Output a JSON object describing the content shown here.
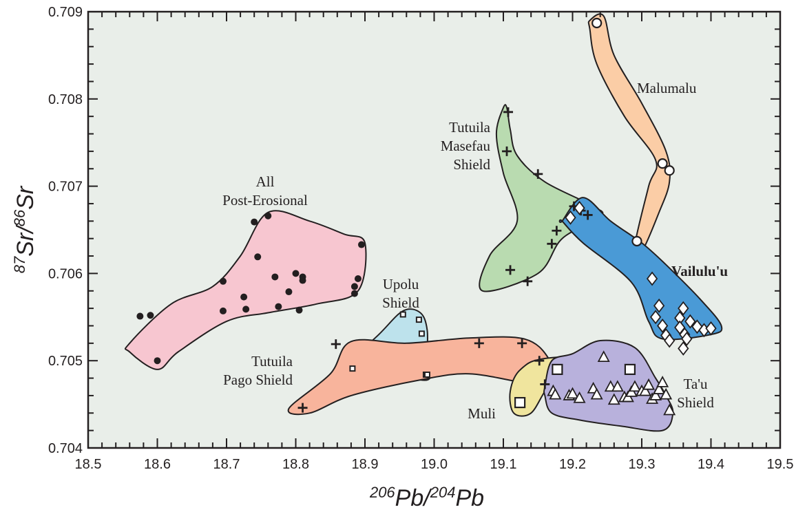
{
  "chart_data": {
    "type": "scatter",
    "title": "",
    "xlabel": {
      "a": "206",
      "b": "Pb/",
      "c": "204",
      "d": "Pb"
    },
    "ylabel": {
      "a": "87",
      "b": "Sr/",
      "c": "86",
      "d": "Sr"
    },
    "xlim": [
      18.5,
      19.5
    ],
    "ylim": [
      0.704,
      0.709
    ],
    "xticks": [
      "18.5",
      "18.6",
      "18.7",
      "18.8",
      "18.9",
      "19.0",
      "19.1",
      "19.2",
      "19.3",
      "19.4",
      "19.5"
    ],
    "yticks": [
      "0.704",
      "0.705",
      "0.706",
      "0.707",
      "0.708",
      "0.709"
    ],
    "grid": false,
    "background": "#e9eee9",
    "series": [
      {
        "name": "All Post-Erosional",
        "label_lines": [
          "All",
          "Post-Erosional"
        ],
        "marker": "dot",
        "fill": "#f7c6d0",
        "outline": [
          [
            18.56,
            0.7052
          ],
          [
            18.62,
            0.70565
          ],
          [
            18.68,
            0.70585
          ],
          [
            18.72,
            0.7062
          ],
          [
            18.76,
            0.7067
          ],
          [
            18.82,
            0.7066
          ],
          [
            18.87,
            0.70645
          ],
          [
            18.9,
            0.70635
          ],
          [
            18.89,
            0.7058
          ],
          [
            18.83,
            0.70565
          ],
          [
            18.76,
            0.70555
          ],
          [
            18.7,
            0.70545
          ],
          [
            18.63,
            0.7051
          ],
          [
            18.6,
            0.7049
          ],
          [
            18.56,
            0.7051
          ]
        ],
        "x": [
          18.575,
          18.59,
          18.6,
          18.695,
          18.695,
          18.725,
          18.728,
          18.74,
          18.745,
          18.76,
          18.77,
          18.775,
          18.79,
          18.8,
          18.805,
          18.81,
          18.81,
          18.885,
          18.885,
          18.89,
          18.895
        ],
        "y": [
          0.70551,
          0.70552,
          0.705,
          0.70591,
          0.70557,
          0.70573,
          0.70559,
          0.70659,
          0.70619,
          0.70666,
          0.70596,
          0.70562,
          0.70579,
          0.706,
          0.70558,
          0.70592,
          0.70596,
          0.70585,
          0.70577,
          0.70594,
          0.70633
        ]
      },
      {
        "name": "Upolu Shield",
        "label_lines": [
          "Upolu",
          "Shield"
        ],
        "marker": "small-square",
        "fill": "#bde2ec",
        "outline": [
          [
            18.87,
            0.70492
          ],
          [
            18.92,
            0.7053
          ],
          [
            18.955,
            0.70557
          ],
          [
            18.98,
            0.70555
          ],
          [
            18.99,
            0.70535
          ],
          [
            18.99,
            0.705
          ],
          [
            18.995,
            0.70482
          ],
          [
            18.98,
            0.70478
          ],
          [
            18.93,
            0.7049
          ],
          [
            18.88,
            0.70485
          ]
        ],
        "x": [
          18.882,
          18.955,
          18.978,
          18.982,
          18.988,
          18.99
        ],
        "y": [
          0.70491,
          0.70553,
          0.70547,
          0.70531,
          0.70484,
          0.70484
        ]
      },
      {
        "name": "Tutuila Pago Shield",
        "label_lines": [
          "Tutuila",
          "Pago Shield"
        ],
        "marker": "plus",
        "fill": "#f8b49c",
        "outline": [
          [
            18.79,
            0.70445
          ],
          [
            18.85,
            0.70485
          ],
          [
            18.88,
            0.70522
          ],
          [
            18.96,
            0.7052
          ],
          [
            19.05,
            0.70526
          ],
          [
            19.13,
            0.70525
          ],
          [
            19.165,
            0.70503
          ],
          [
            19.17,
            0.70475
          ],
          [
            19.13,
            0.70475
          ],
          [
            19.05,
            0.70485
          ],
          [
            18.98,
            0.70478
          ],
          [
            18.88,
            0.7046
          ],
          [
            18.82,
            0.7044
          ]
        ],
        "x": [
          18.81,
          18.858,
          19.065,
          19.127,
          19.152,
          19.16
        ],
        "y": [
          0.70446,
          0.70519,
          0.7052,
          0.7052,
          0.705,
          0.70473
        ]
      },
      {
        "name": "Tutuila Masefau Shield",
        "label_lines": [
          "Tutuila",
          "Masefau",
          "Shield"
        ],
        "marker": "plus",
        "fill": "#b9dbb0",
        "outline": [
          [
            19.105,
            0.7079
          ],
          [
            19.11,
            0.70765
          ],
          [
            19.12,
            0.70735
          ],
          [
            19.16,
            0.70705
          ],
          [
            19.23,
            0.70677
          ],
          [
            19.24,
            0.70665
          ],
          [
            19.185,
            0.7064
          ],
          [
            19.15,
            0.706
          ],
          [
            19.07,
            0.7058
          ],
          [
            19.08,
            0.7062
          ],
          [
            19.12,
            0.7066
          ],
          [
            19.1,
            0.70715
          ],
          [
            19.09,
            0.7076
          ],
          [
            19.1,
            0.7079
          ]
        ],
        "x": [
          19.107,
          19.105,
          19.11,
          19.135,
          19.15,
          19.17,
          19.177,
          19.202,
          19.212,
          19.222
        ],
        "y": [
          0.70785,
          0.7074,
          0.70604,
          0.70591,
          0.70714,
          0.70634,
          0.70649,
          0.70677,
          0.70672,
          0.70667
        ]
      },
      {
        "name": "Malumalu",
        "label_lines": [
          "Malumalu"
        ],
        "marker": "circle",
        "fill": "#fbcda6",
        "outline": [
          [
            19.225,
            0.7089
          ],
          [
            19.245,
            0.70895
          ],
          [
            19.26,
            0.7085
          ],
          [
            19.3,
            0.70795
          ],
          [
            19.335,
            0.7074
          ],
          [
            19.34,
            0.70705
          ],
          [
            19.325,
            0.7067
          ],
          [
            19.3,
            0.70625
          ],
          [
            19.29,
            0.70632
          ],
          [
            19.31,
            0.707
          ],
          [
            19.32,
            0.7073
          ],
          [
            19.275,
            0.7078
          ],
          [
            19.235,
            0.7084
          ],
          [
            19.225,
            0.7088
          ]
        ],
        "x": [
          19.235,
          19.293,
          19.33,
          19.34
        ],
        "y": [
          0.70887,
          0.70637,
          0.70726,
          0.70718
        ]
      },
      {
        "name": "Vailulu'u",
        "label_lines": [
          "Vailulu'u"
        ],
        "marker": "diamond",
        "fill": "#4a9ad6",
        "outline": [
          [
            19.185,
            0.7066
          ],
          [
            19.215,
            0.70687
          ],
          [
            19.255,
            0.7066
          ],
          [
            19.3,
            0.70635
          ],
          [
            19.335,
            0.7061
          ],
          [
            19.385,
            0.7057
          ],
          [
            19.415,
            0.7054
          ],
          [
            19.4,
            0.7053
          ],
          [
            19.33,
            0.70525
          ],
          [
            19.31,
            0.70545
          ],
          [
            19.285,
            0.7059
          ],
          [
            19.215,
            0.70635
          ],
          [
            19.185,
            0.7066
          ]
        ],
        "x": [
          19.197,
          19.21,
          19.315,
          19.325,
          19.33,
          19.32,
          19.335,
          19.34,
          19.355,
          19.36,
          19.355,
          19.362,
          19.37,
          19.365,
          19.38,
          19.39,
          19.4,
          19.36
        ],
        "y": [
          0.70664,
          0.70675,
          0.70594,
          0.70563,
          0.7054,
          0.7055,
          0.70529,
          0.70523,
          0.70549,
          0.7056,
          0.70538,
          0.7053,
          0.70545,
          0.70525,
          0.70539,
          0.70535,
          0.70537,
          0.70514
        ]
      },
      {
        "name": "Muli",
        "label_lines": [
          "Muli"
        ],
        "marker": "square",
        "fill": "#f0e59e",
        "outline": [
          [
            19.11,
            0.70465
          ],
          [
            19.125,
            0.7049
          ],
          [
            19.165,
            0.70503
          ],
          [
            19.29,
            0.70505
          ],
          [
            19.305,
            0.7049
          ],
          [
            19.28,
            0.7048
          ],
          [
            19.19,
            0.70477
          ],
          [
            19.165,
            0.7047
          ],
          [
            19.14,
            0.7044
          ],
          [
            19.115,
            0.7044
          ]
        ],
        "x": [
          19.124,
          19.178,
          19.283
        ],
        "y": [
          0.70452,
          0.7049,
          0.7049
        ]
      },
      {
        "name": "Ta'u Shield",
        "label_lines": [
          "Ta'u",
          "Shield"
        ],
        "marker": "triangle",
        "fill": "#b8b1dc",
        "outline": [
          [
            19.16,
            0.7047
          ],
          [
            19.17,
            0.705
          ],
          [
            19.2,
            0.70508
          ],
          [
            19.24,
            0.70523
          ],
          [
            19.29,
            0.70515
          ],
          [
            19.32,
            0.7048
          ],
          [
            19.335,
            0.7046
          ],
          [
            19.345,
            0.7044
          ],
          [
            19.33,
            0.7042
          ],
          [
            19.27,
            0.70425
          ],
          [
            19.21,
            0.70432
          ],
          [
            19.17,
            0.7044
          ],
          [
            19.16,
            0.7046
          ]
        ],
        "x": [
          19.172,
          19.175,
          19.195,
          19.2,
          19.21,
          19.23,
          19.235,
          19.245,
          19.255,
          19.26,
          19.265,
          19.275,
          19.28,
          19.285,
          19.29,
          19.3,
          19.305,
          19.31,
          19.315,
          19.32,
          19.325,
          19.33,
          19.335,
          19.34
        ],
        "y": [
          0.70465,
          0.70461,
          0.7046,
          0.70462,
          0.70457,
          0.70468,
          0.70461,
          0.70504,
          0.7047,
          0.70455,
          0.7047,
          0.70458,
          0.70458,
          0.70464,
          0.7047,
          0.70465,
          0.70465,
          0.70472,
          0.70456,
          0.7046,
          0.70467,
          0.70475,
          0.70461,
          0.70443
        ]
      }
    ]
  }
}
